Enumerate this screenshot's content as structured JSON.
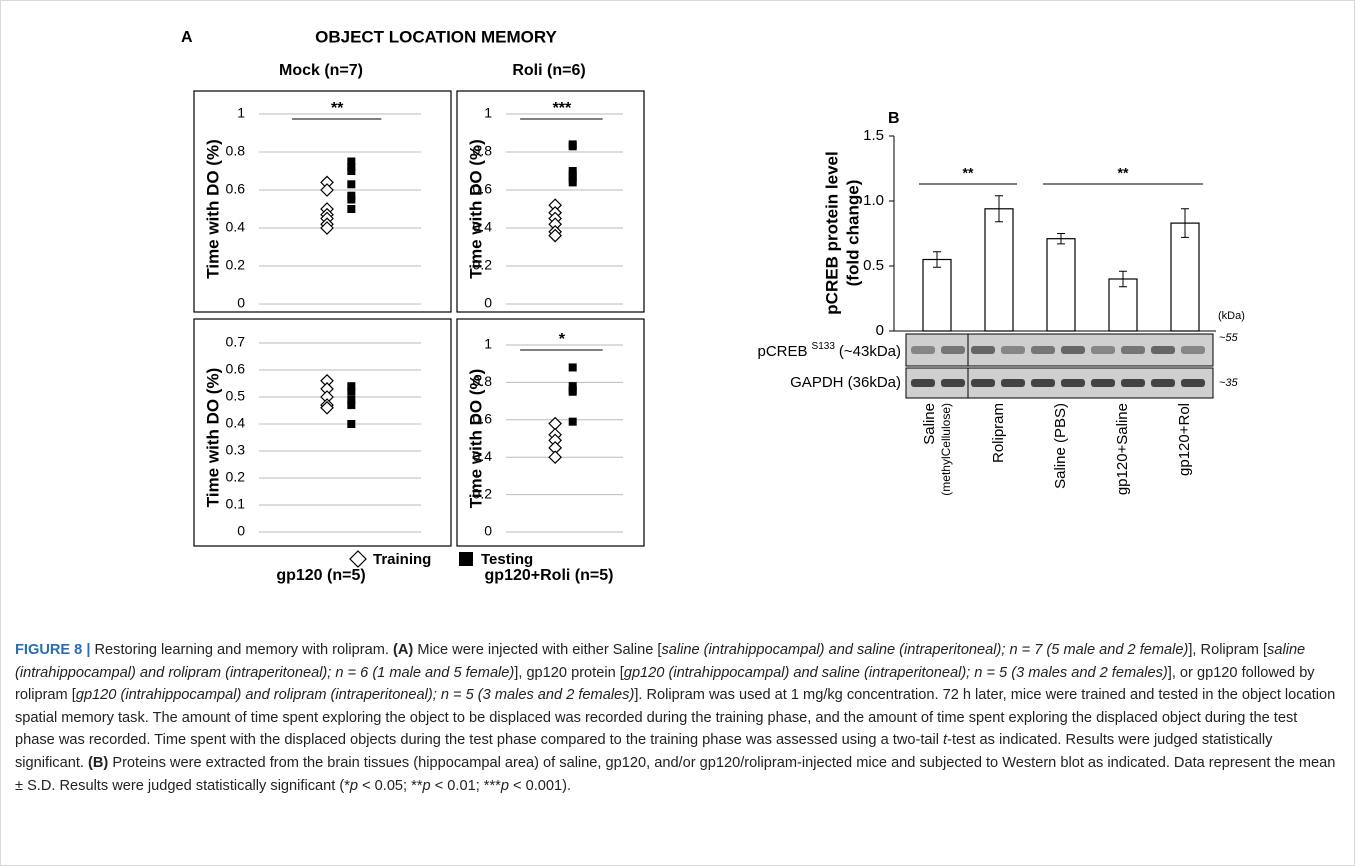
{
  "panel_a": {
    "label": "A",
    "title": "OBJECT LOCATION MEMORY",
    "legend": [
      "Training",
      "Testing"
    ],
    "charts": [
      {
        "type": "dot",
        "title": "Mock (n=7)",
        "ylabel": "Time with DO (%)",
        "ylim": [
          0,
          1
        ],
        "yticks": [
          0,
          0.2,
          0.4,
          0.6,
          0.8,
          1
        ],
        "grid": true,
        "training": [
          0.64,
          0.6,
          0.5,
          0.47,
          0.45,
          0.42,
          0.4
        ],
        "testing": [
          0.75,
          0.72,
          0.7,
          0.63,
          0.57,
          0.55,
          0.5
        ],
        "significance": "**"
      },
      {
        "type": "dot",
        "title": "Roli (n=6)",
        "ylabel": "Time with DO (%)",
        "ylim": [
          0,
          1
        ],
        "yticks": [
          0,
          0.2,
          0.4,
          0.6,
          0.8,
          1
        ],
        "grid": true,
        "training": [
          0.52,
          0.48,
          0.45,
          0.42,
          0.38,
          0.36
        ],
        "testing": [
          0.84,
          0.83,
          0.7,
          0.68,
          0.66,
          0.64
        ],
        "significance": "***"
      },
      {
        "type": "dot",
        "title": "gp120 (n=5)",
        "ylabel": "Time with DO (%)",
        "ylim": [
          0,
          0.7
        ],
        "yticks": [
          0,
          0.1,
          0.2,
          0.3,
          0.4,
          0.5,
          0.6,
          0.7
        ],
        "grid": true,
        "training": [
          0.56,
          0.53,
          0.5,
          0.47,
          0.46
        ],
        "testing": [
          0.54,
          0.52,
          0.49,
          0.47,
          0.4
        ]
      },
      {
        "type": "dot",
        "title": "gp120+Roli (n=5)",
        "ylabel": "Time with DO (%)",
        "ylim": [
          0,
          1
        ],
        "yticks": [
          0,
          0.2,
          0.4,
          0.6,
          0.8,
          1
        ],
        "grid": true,
        "training": [
          0.58,
          0.52,
          0.49,
          0.45,
          0.4
        ],
        "testing": [
          0.88,
          0.78,
          0.76,
          0.75,
          0.59
        ],
        "significance": "*"
      }
    ]
  },
  "panel_b": {
    "label": "B",
    "chart": {
      "type": "bar",
      "ylabel": [
        "pCREB protein level",
        "(fold change)"
      ],
      "categories": [
        "Saline",
        "Rolipram",
        "Saline (PBS)",
        "gp120+Saline",
        "gp120+Rol"
      ],
      "category_notes": [
        "(methylCellulose)",
        null,
        null,
        null,
        null
      ],
      "values": [
        0.55,
        0.94,
        0.71,
        0.4,
        0.83
      ],
      "errors": [
        0.06,
        0.1,
        0.04,
        0.06,
        0.11
      ],
      "color": "#ffffff",
      "ylim": [
        0,
        1.5
      ],
      "yticks": [
        0,
        0.5,
        {
          "value": 1,
          "label": "1.0"
        },
        1.5
      ],
      "significance": [
        {
          "span": [
            0,
            1
          ],
          "label": "**"
        },
        {
          "span": [
            2,
            4
          ],
          "label": "**"
        }
      ]
    },
    "blot": {
      "unit": "(kDa)",
      "rows": [
        {
          "name": "pCREB",
          "sup": "S133",
          "size": "(~43kDa)",
          "marker": "~55"
        },
        {
          "name": "GAPDH (36kDa)",
          "marker": "~35"
        }
      ]
    }
  },
  "caption": {
    "label": "FIGURE 8 |",
    "parts": [
      " Restoring learning and memory with rolipram. ",
      "(A)",
      " Mice were injected with either Saline [",
      "saline (intrahippocampal) and saline (intraperitoneal); n = 7 (5 male and 2 female)",
      "], Rolipram [",
      "saline (intrahippocampal) and rolipram (intraperitoneal); n = 6 (1 male and 5 female)",
      "], gp120 protein [",
      "gp120 (intrahippocampal) and saline (intraperitoneal); n = 5 (3 males and 2 females)",
      "], or gp120 followed by rolipram [",
      "gp120 (intrahippocampal) and rolipram (intraperitoneal); n = 5 (3 males and 2 females)",
      "]. Rolipram was used at 1 mg/kg concentration. 72 h later, mice were trained and tested in the object location spatial memory task. The amount of time spent exploring the object to be displaced was recorded during the training phase, and the amount of time spent exploring the displaced object during the test phase was recorded. Time spent with the displaced objects during the test phase compared to the training phase was assessed using a two-tail ",
      "t",
      "-test as indicated. Results were judged statistically significant. ",
      "(B)",
      " Proteins were extracted from the brain tissues (hippocampal area) of saline, gp120, and/or gp120/rolipram-injected mice and subjected to Western blot as indicated. Data represent the mean ± S.D. Results were judged statistically significant (*",
      "p",
      " < 0.05; **",
      "p",
      " < 0.01; ***",
      "p",
      " < 0.001)."
    ]
  }
}
